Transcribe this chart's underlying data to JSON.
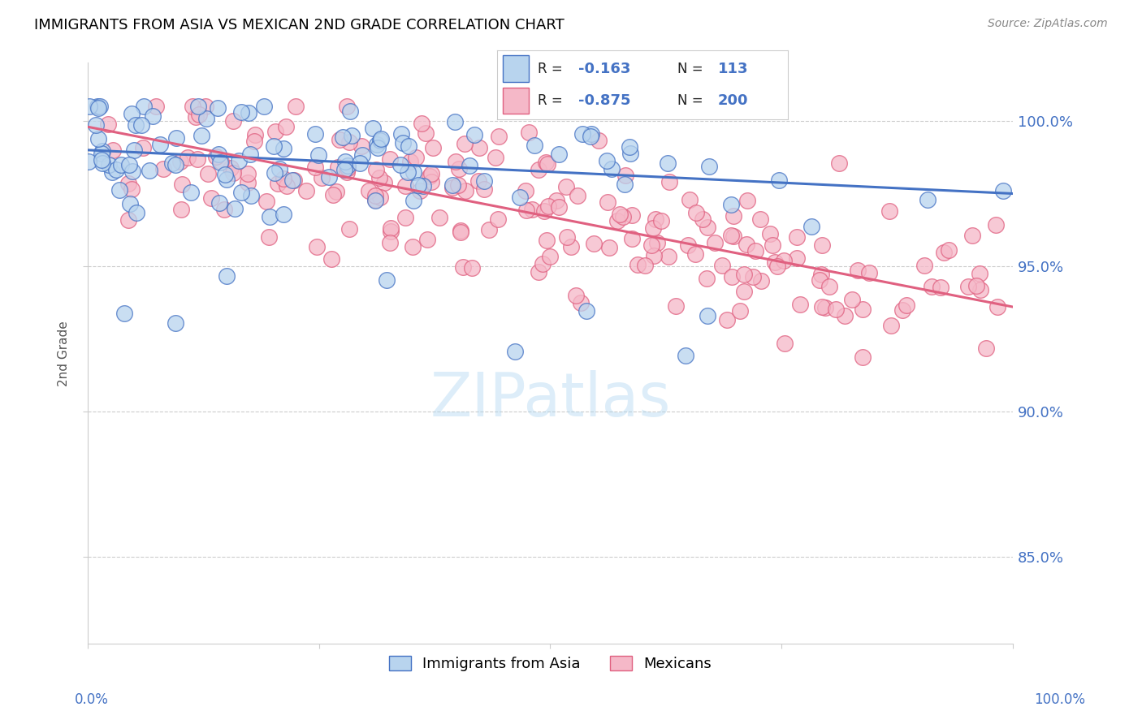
{
  "title": "IMMIGRANTS FROM ASIA VS MEXICAN 2ND GRADE CORRELATION CHART",
  "source": "Source: ZipAtlas.com",
  "ylabel": "2nd Grade",
  "legend_label_blue": "Immigrants from Asia",
  "legend_label_pink": "Mexicans",
  "xlim": [
    0.0,
    1.0
  ],
  "ylim": [
    0.82,
    1.02
  ],
  "yticks": [
    0.85,
    0.9,
    0.95,
    1.0
  ],
  "ytick_labels": [
    "85.0%",
    "90.0%",
    "95.0%",
    "100.0%"
  ],
  "blue_fill": "#b8d4ee",
  "pink_fill": "#f5b8c8",
  "blue_edge": "#4472c4",
  "pink_edge": "#e06080",
  "blue_line_color": "#4472c4",
  "pink_line_color": "#e06080",
  "background_color": "#ffffff",
  "watermark": "ZIPatlas",
  "blue_slope": -0.015,
  "blue_intercept": 0.99,
  "pink_slope": -0.062,
  "pink_intercept": 0.998,
  "seed": 42
}
